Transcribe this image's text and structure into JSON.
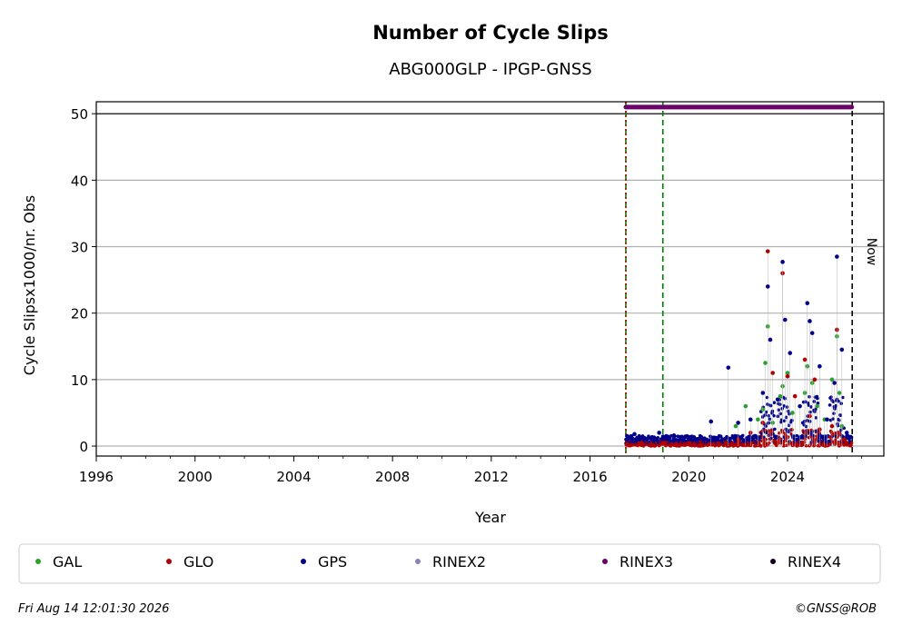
{
  "chart_data": {
    "type": "scatter",
    "title": "Number of Cycle Slips",
    "subtitle": "ABG000GLP - IPGP-GNSS",
    "xlabel": "Year",
    "ylabel": "Cycle Slipsx1000/nr. Obs",
    "xlim": [
      1996,
      2027.9
    ],
    "ylim": [
      -1.5,
      51.8
    ],
    "x_ticks": [
      1996,
      2000,
      2004,
      2008,
      2012,
      2016,
      2020,
      2024
    ],
    "y_ticks": [
      0,
      10,
      20,
      30,
      40,
      50
    ],
    "grid": "horizontal",
    "legend_placement": "bottom",
    "reference_line_y": 50,
    "vertical_markers": [
      {
        "x": 2017.45,
        "color": "#008000",
        "style": "dashed"
      },
      {
        "x": 2017.45,
        "color": "#b00000",
        "style": "dotted"
      },
      {
        "x": 2018.95,
        "color": "#008000",
        "style": "dashed"
      },
      {
        "x": 2026.62,
        "color": "#000000",
        "style": "dashed",
        "label": "Now"
      }
    ],
    "rinex3_availability": {
      "start": 2017.45,
      "end": 2026.6,
      "y": 51
    },
    "series": [
      {
        "name": "GAL",
        "color": "#2ca02c",
        "x": [
          2021.9,
          2022.3,
          2022.8,
          2023.0,
          2023.1,
          2023.2,
          2023.4,
          2023.7,
          2023.8,
          2024.0,
          2024.2,
          2024.7,
          2024.8,
          2025.0,
          2025.2,
          2025.5,
          2025.8,
          2026.0,
          2026.1,
          2026.2
        ],
        "y": [
          3.0,
          6.0,
          4.0,
          5.5,
          12.5,
          18.0,
          3.5,
          7.5,
          9.0,
          11.0,
          5.0,
          8.0,
          12.0,
          9.5,
          6.0,
          4.0,
          10.0,
          16.5,
          8.0,
          3.0
        ]
      },
      {
        "name": "GLO",
        "color": "#b00000",
        "x": [
          2017.5,
          2018.0,
          2018.5,
          2019.0,
          2019.5,
          2020.0,
          2020.5,
          2021.0,
          2021.5,
          2022.0,
          2022.5,
          2023.0,
          2023.2,
          2023.4,
          2023.8,
          2024.0,
          2024.3,
          2024.7,
          2024.9,
          2025.1,
          2025.3,
          2025.8,
          2026.0,
          2026.3
        ],
        "y": [
          0.3,
          0.4,
          0.2,
          0.5,
          0.3,
          0.4,
          0.2,
          0.3,
          0.5,
          1.0,
          2.0,
          3.5,
          29.3,
          11.0,
          26.0,
          10.5,
          7.5,
          13.0,
          4.5,
          10.0,
          2.5,
          3.0,
          17.5,
          1.0
        ]
      },
      {
        "name": "GPS",
        "color": "#00008b",
        "x": [
          2017.5,
          2017.8,
          2018.2,
          2018.8,
          2019.4,
          2020.1,
          2020.9,
          2021.6,
          2022.0,
          2022.5,
          2023.0,
          2023.2,
          2023.3,
          2023.6,
          2023.8,
          2023.9,
          2024.1,
          2024.5,
          2024.8,
          2024.9,
          2025.0,
          2025.3,
          2025.6,
          2025.9,
          2026.0,
          2026.2,
          2026.4
        ],
        "y": [
          1.5,
          1.8,
          1.2,
          2.0,
          1.6,
          1.4,
          3.7,
          11.8,
          3.5,
          4.0,
          8.0,
          24.0,
          16.0,
          7.0,
          27.7,
          19.0,
          14.0,
          6.0,
          21.5,
          18.8,
          17.0,
          12.0,
          4.0,
          9.5,
          28.5,
          14.5,
          2.0
        ]
      },
      {
        "name": "RINEX2",
        "color": "#8c7fc0",
        "x": [],
        "y": []
      },
      {
        "name": "RINEX3",
        "color": "#6a0068",
        "x": [],
        "y": []
      },
      {
        "name": "RINEX4",
        "color": "#1a0020",
        "x": [],
        "y": []
      }
    ]
  },
  "footer": {
    "timestamp": "Fri Aug 14 12:01:30 2026",
    "credit": "©GNSS@ROB"
  },
  "now_label": "Now"
}
